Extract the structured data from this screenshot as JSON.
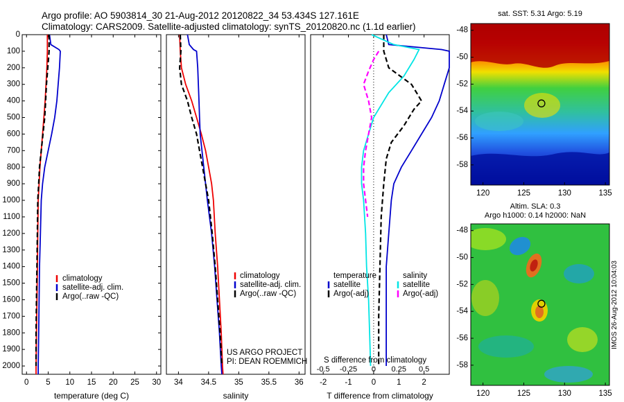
{
  "header": {
    "line1": "Argo profile: AO 5903814_30 21-Aug-2012 20120822_34 53.434S 127.161E",
    "line2": "Climatology: CARS2009. Satellite-adjusted climatology: synTS_20120820.nc (1.1d earlier)"
  },
  "colors": {
    "climatology": "#ee0000",
    "satellite": "#0000cc",
    "argo": "#000000",
    "cyan": "#00e5e5",
    "magenta": "#ff00ff"
  },
  "chart_data": [
    {
      "id": "temperature",
      "type": "line",
      "xlabel": "temperature (deg C)",
      "ylabel": "",
      "xlim": [
        -1,
        31
      ],
      "ylim": [
        2050,
        0
      ],
      "xticks": [
        0,
        5,
        10,
        15,
        20,
        25,
        30
      ],
      "yticks": [
        0,
        100,
        200,
        300,
        400,
        500,
        600,
        700,
        800,
        900,
        1000,
        1100,
        1200,
        1300,
        1400,
        1500,
        1600,
        1700,
        1800,
        1900,
        2000
      ],
      "legend": [
        "climatology",
        "satellite-adj. clim.",
        "Argo(..raw -QC)"
      ],
      "series": [
        {
          "name": "climatology",
          "dash": "solid",
          "points": [
            [
              4.8,
              0
            ],
            [
              4.8,
              100
            ],
            [
              4.7,
              200
            ],
            [
              4.5,
              300
            ],
            [
              4.3,
              400
            ],
            [
              4.0,
              500
            ],
            [
              3.7,
              600
            ],
            [
              3.4,
              700
            ],
            [
              3.1,
              800
            ],
            [
              2.9,
              900
            ],
            [
              2.7,
              1000
            ],
            [
              2.6,
              1200
            ],
            [
              2.5,
              1400
            ],
            [
              2.4,
              1600
            ],
            [
              2.3,
              1800
            ],
            [
              2.2,
              2000
            ],
            [
              2.2,
              2050
            ]
          ]
        },
        {
          "name": "satellite-adj. clim.",
          "dash": "solid",
          "points": [
            [
              5.3,
              0
            ],
            [
              5.6,
              60
            ],
            [
              7.5,
              90
            ],
            [
              7.8,
              100
            ],
            [
              7.6,
              200
            ],
            [
              7.3,
              300
            ],
            [
              7.0,
              400
            ],
            [
              6.5,
              500
            ],
            [
              5.8,
              600
            ],
            [
              5.0,
              700
            ],
            [
              4.2,
              800
            ],
            [
              3.7,
              900
            ],
            [
              3.4,
              1000
            ],
            [
              3.2,
              1200
            ],
            [
              3.0,
              1400
            ],
            [
              2.9,
              1600
            ],
            [
              2.8,
              1800
            ],
            [
              2.7,
              2000
            ],
            [
              2.7,
              2050
            ]
          ]
        },
        {
          "name": "Argo(..raw -QC)",
          "dash": "dashed",
          "points": [
            [
              5.2,
              0
            ],
            [
              5.2,
              100
            ],
            [
              4.9,
              200
            ],
            [
              4.6,
              300
            ],
            [
              4.4,
              400
            ],
            [
              4.2,
              500
            ],
            [
              3.8,
              600
            ],
            [
              3.4,
              700
            ],
            [
              3.0,
              800
            ],
            [
              2.8,
              900
            ],
            [
              2.6,
              1000
            ],
            [
              2.5,
              1200
            ],
            [
              2.4,
              1400
            ],
            [
              2.3,
              1600
            ],
            [
              2.2,
              1800
            ],
            [
              2.2,
              2000
            ]
          ]
        }
      ]
    },
    {
      "id": "salinity",
      "type": "line",
      "xlabel": "salinity",
      "ylabel": "",
      "xlim": [
        33.8,
        36.1
      ],
      "ylim": [
        2050,
        0
      ],
      "xticks": [
        34,
        34.5,
        35,
        35.5,
        36
      ],
      "xtick_labels": [
        "34",
        "34.5",
        "35",
        "35.5",
        "36"
      ],
      "legend": [
        "climatology",
        "satellite-adj. clim.",
        "Argo(..raw -QC)"
      ],
      "annotations": [
        "US ARGO PROJECT",
        "PI: DEAN ROEMMICH"
      ],
      "series": [
        {
          "name": "climatology",
          "dash": "solid",
          "points": [
            [
              34.02,
              0
            ],
            [
              34.03,
              100
            ],
            [
              34.05,
              200
            ],
            [
              34.12,
              300
            ],
            [
              34.22,
              400
            ],
            [
              34.3,
              500
            ],
            [
              34.38,
              600
            ],
            [
              34.45,
              700
            ],
            [
              34.5,
              800
            ],
            [
              34.55,
              900
            ],
            [
              34.58,
              1000
            ],
            [
              34.61,
              1200
            ],
            [
              34.65,
              1400
            ],
            [
              34.68,
              1600
            ],
            [
              34.71,
              1800
            ],
            [
              34.73,
              2000
            ],
            [
              34.74,
              2050
            ]
          ]
        },
        {
          "name": "satellite-adj. clim.",
          "dash": "solid",
          "points": [
            [
              34.15,
              0
            ],
            [
              34.18,
              60
            ],
            [
              34.25,
              90
            ],
            [
              34.3,
              100
            ],
            [
              34.32,
              200
            ],
            [
              34.33,
              300
            ],
            [
              34.34,
              400
            ],
            [
              34.35,
              500
            ],
            [
              34.36,
              600
            ],
            [
              34.39,
              700
            ],
            [
              34.42,
              800
            ],
            [
              34.45,
              900
            ],
            [
              34.48,
              1000
            ],
            [
              34.55,
              1200
            ],
            [
              34.6,
              1400
            ],
            [
              34.64,
              1600
            ],
            [
              34.68,
              1800
            ],
            [
              34.71,
              2000
            ],
            [
              34.72,
              2050
            ]
          ]
        },
        {
          "name": "Argo(..raw -QC)",
          "dash": "dashed",
          "points": [
            [
              34.03,
              0
            ],
            [
              34.04,
              100
            ],
            [
              34.02,
              200
            ],
            [
              34.05,
              300
            ],
            [
              34.15,
              400
            ],
            [
              34.22,
              500
            ],
            [
              34.3,
              600
            ],
            [
              34.35,
              700
            ],
            [
              34.4,
              800
            ],
            [
              34.45,
              900
            ],
            [
              34.5,
              1000
            ],
            [
              34.56,
              1200
            ],
            [
              34.61,
              1400
            ],
            [
              34.65,
              1600
            ],
            [
              34.69,
              1800
            ],
            [
              34.72,
              2000
            ]
          ]
        }
      ]
    },
    {
      "id": "difference",
      "type": "line",
      "xlabel": "T difference from climatology",
      "x2label": "S difference from climatology",
      "xlim": [
        -2.5,
        3
      ],
      "ylim": [
        2050,
        0
      ],
      "xticks": [
        -2,
        -1,
        0,
        1,
        2
      ],
      "x2lim": [
        -0.625,
        0.75
      ],
      "x2ticks": [
        -0.5,
        -0.25,
        0,
        0.25,
        0.5
      ],
      "x2tick_labels": [
        "-0.5",
        "-0.25",
        "0",
        "0.25",
        "0.5"
      ],
      "legend_headers": [
        "temperature",
        "salinity"
      ],
      "legend": [
        "satellite",
        "Argo(-adj)",
        "satellite",
        "Argo(-adj)"
      ],
      "series": [
        {
          "name": "satellite",
          "group": "temperature",
          "axis": "T",
          "color": "satellite",
          "dash": "solid",
          "points": [
            [
              0.5,
              0
            ],
            [
              0.6,
              60
            ],
            [
              2.7,
              90
            ],
            [
              3.0,
              100
            ],
            [
              3.0,
              200
            ],
            [
              2.8,
              300
            ],
            [
              2.6,
              400
            ],
            [
              2.3,
              500
            ],
            [
              1.9,
              600
            ],
            [
              1.5,
              700
            ],
            [
              1.1,
              800
            ],
            [
              0.8,
              900
            ],
            [
              0.7,
              1000
            ],
            [
              0.6,
              1200
            ],
            [
              0.5,
              1400
            ],
            [
              0.5,
              1600
            ],
            [
              0.5,
              1800
            ],
            [
              0.5,
              2000
            ]
          ]
        },
        {
          "name": "Argo(-adj)",
          "group": "temperature",
          "axis": "T",
          "color": "argo",
          "dash": "dashed",
          "points": [
            [
              0.4,
              0
            ],
            [
              0.4,
              100
            ],
            [
              0.6,
              200
            ],
            [
              1.5,
              300
            ],
            [
              1.9,
              400
            ],
            [
              1.6,
              450
            ],
            [
              1.2,
              550
            ],
            [
              0.7,
              650
            ],
            [
              0.5,
              750
            ],
            [
              0.4,
              900
            ],
            [
              0.3,
              1100
            ],
            [
              0.25,
              1400
            ],
            [
              0.2,
              1700
            ],
            [
              0.2,
              2000
            ]
          ]
        },
        {
          "name": "satellite",
          "group": "salinity",
          "axis": "S",
          "color": "cyan",
          "dash": "solid",
          "points": [
            [
              -0.02,
              0
            ],
            [
              0.2,
              60
            ],
            [
              0.45,
              90
            ],
            [
              0.4,
              150
            ],
            [
              0.3,
              250
            ],
            [
              0.15,
              350
            ],
            [
              0.0,
              500
            ],
            [
              -0.05,
              600
            ],
            [
              -0.1,
              700
            ],
            [
              -0.12,
              800
            ],
            [
              -0.12,
              900
            ],
            [
              -0.1,
              1000
            ],
            [
              -0.08,
              1200
            ],
            [
              -0.07,
              1400
            ],
            [
              -0.05,
              1600
            ],
            [
              -0.04,
              1800
            ],
            [
              -0.03,
              2000
            ]
          ]
        },
        {
          "name": "Argo(-adj)",
          "group": "salinity",
          "axis": "S",
          "color": "magenta",
          "dash": "dashed",
          "points": [
            [
              0.05,
              100
            ],
            [
              0.0,
              150
            ],
            [
              -0.05,
              220
            ],
            [
              -0.1,
              300
            ],
            [
              -0.05,
              400
            ],
            [
              -0.02,
              500
            ],
            [
              -0.05,
              600
            ],
            [
              -0.08,
              700
            ],
            [
              -0.1,
              800
            ],
            [
              -0.1,
              900
            ],
            [
              -0.08,
              1000
            ],
            [
              -0.06,
              1100
            ]
          ]
        }
      ]
    },
    {
      "id": "sst_map",
      "type": "heatmap",
      "title": "sat. SST: 5.31 Argo: 5.19",
      "xlim": [
        118.5,
        135.5
      ],
      "ylim": [
        -59.5,
        -47.5
      ],
      "xticks": [
        120,
        125,
        130,
        135
      ],
      "yticks": [
        -48,
        -50,
        -52,
        -54,
        -56,
        -58
      ],
      "marker": {
        "lon": 127.161,
        "lat": -53.434
      }
    },
    {
      "id": "sla_map",
      "type": "heatmap",
      "title": "Altim. SLA: 0.3",
      "subtitle": "Argo h1000: 0.14 h2000: NaN",
      "xlim": [
        118.5,
        135.5
      ],
      "ylim": [
        -59.5,
        -47.5
      ],
      "xticks": [
        120,
        125,
        130,
        135
      ],
      "yticks": [
        -48,
        -50,
        -52,
        -54,
        -56,
        -58
      ],
      "marker": {
        "lon": 127.161,
        "lat": -53.434
      },
      "side_label": "IMOS 26-Aug-2012 10:04:03"
    }
  ]
}
